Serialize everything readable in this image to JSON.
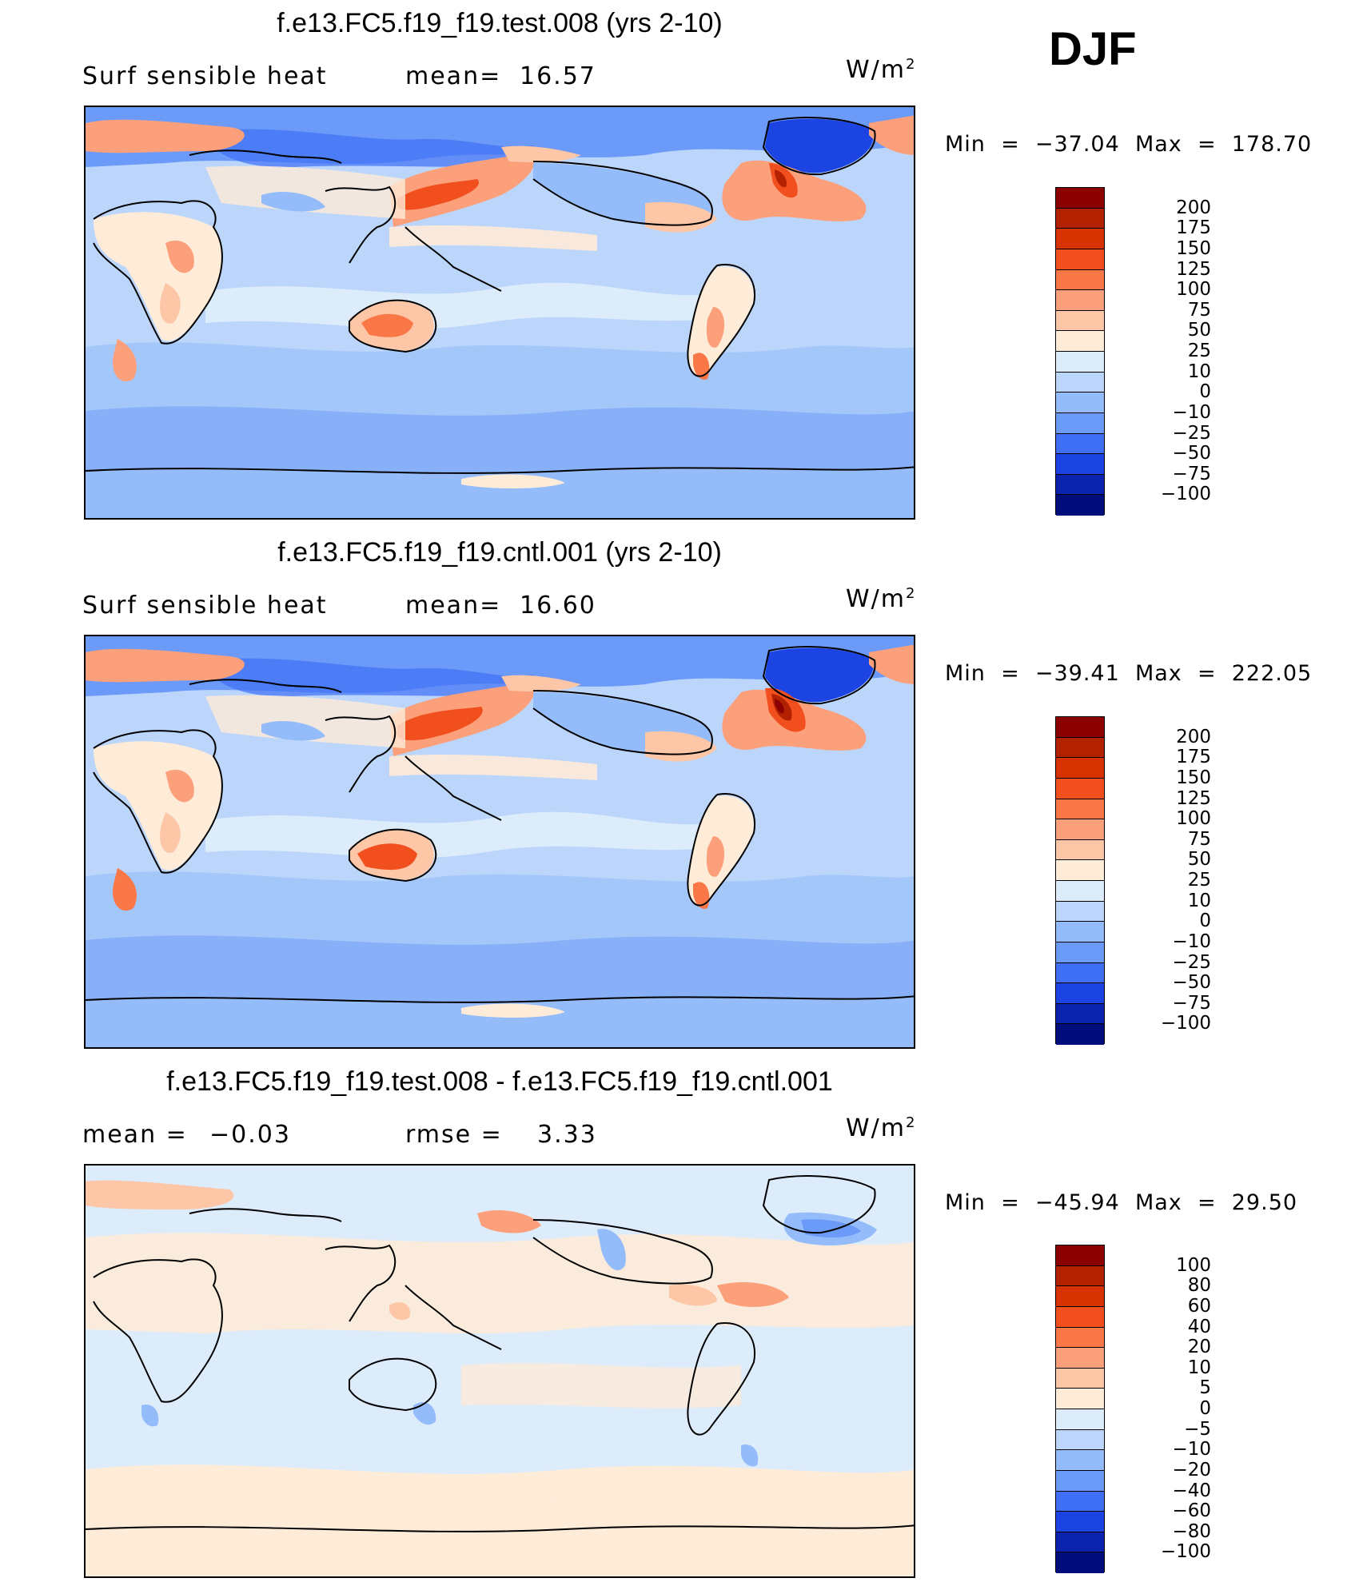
{
  "season": "DJF",
  "chart_data": [
    {
      "type": "heatmap",
      "title": "f.e13.FC5.f19_f19.test.008 (yrs 2-10)",
      "variable": "Surf sensible heat",
      "stat_label": "mean=",
      "stat_value": "16.57",
      "units_base": "W/m",
      "units_exp": "2",
      "min_label": "Min",
      "min_value": "−37.04",
      "max_label": "Max",
      "max_value": "178.70",
      "levels": [
        "200",
        "175",
        "150",
        "125",
        "100",
        "75",
        "50",
        "25",
        "10",
        "0",
        "−10",
        "−25",
        "−50",
        "−75",
        "−100"
      ],
      "colors": [
        "#8b0000",
        "#b22200",
        "#d63300",
        "#f24f1e",
        "#fa7848",
        "#fca07b",
        "#fdc6a7",
        "#feebd8",
        "#dcecfb",
        "#bcd6fb",
        "#94bcfa",
        "#6b9af8",
        "#3f6ff5",
        "#1b44e3",
        "#0c23b0",
        "#020d7d"
      ],
      "contours": {
        "ocean_base": "#bcd6fb",
        "land_base": "#feebd8",
        "gulf_stream_max_level": "175",
        "kuroshio_max_level": "125",
        "greenland_level": "−50",
        "antarctica_level": "−10"
      }
    },
    {
      "type": "heatmap",
      "title": "f.e13.FC5.f19_f19.cntl.001 (yrs 2-10)",
      "variable": "Surf sensible heat",
      "stat_label": "mean=",
      "stat_value": "16.60",
      "units_base": "W/m",
      "units_exp": "2",
      "min_label": "Min",
      "min_value": "−39.41",
      "max_label": "Max",
      "max_value": "222.05",
      "levels": [
        "200",
        "175",
        "150",
        "125",
        "100",
        "75",
        "50",
        "25",
        "10",
        "0",
        "−10",
        "−25",
        "−50",
        "−75",
        "−100"
      ],
      "colors": [
        "#8b0000",
        "#b22200",
        "#d63300",
        "#f24f1e",
        "#fa7848",
        "#fca07b",
        "#fdc6a7",
        "#feebd8",
        "#dcecfb",
        "#bcd6fb",
        "#94bcfa",
        "#6b9af8",
        "#3f6ff5",
        "#1b44e3",
        "#0c23b0",
        "#020d7d"
      ],
      "contours": {
        "ocean_base": "#bcd6fb",
        "land_base": "#feebd8",
        "gulf_stream_max_level": "200",
        "kuroshio_max_level": "150",
        "greenland_level": "−50",
        "antarctica_level": "−10"
      }
    },
    {
      "type": "heatmap",
      "title": "f.e13.FC5.f19_f19.test.008 - f.e13.FC5.f19_f19.cntl.001",
      "stat_label": "mean =",
      "stat_value": "−0.03",
      "stat2_label": "rmse =",
      "stat2_value": "3.33",
      "units_base": "W/m",
      "units_exp": "2",
      "min_label": "Min",
      "min_value": "−45.94",
      "max_label": "Max",
      "max_value": "29.50",
      "levels": [
        "100",
        "80",
        "60",
        "40",
        "20",
        "10",
        "5",
        "0",
        "−5",
        "−10",
        "−20",
        "−40",
        "−60",
        "−80",
        "−100"
      ],
      "colors": [
        "#8b0000",
        "#b22200",
        "#d63300",
        "#f24f1e",
        "#fa7848",
        "#fca07b",
        "#fdc6a7",
        "#feebd8",
        "#dcecfb",
        "#bcd6fb",
        "#94bcfa",
        "#6b9af8",
        "#3f6ff5",
        "#1b44e3",
        "#0c23b0",
        "#020d7d"
      ],
      "contours": {
        "ocean_base": "#dcecfb",
        "land_base": "#feebd8",
        "labrador_sea_level": "−20",
        "gulf_stream_level": "20"
      }
    }
  ]
}
